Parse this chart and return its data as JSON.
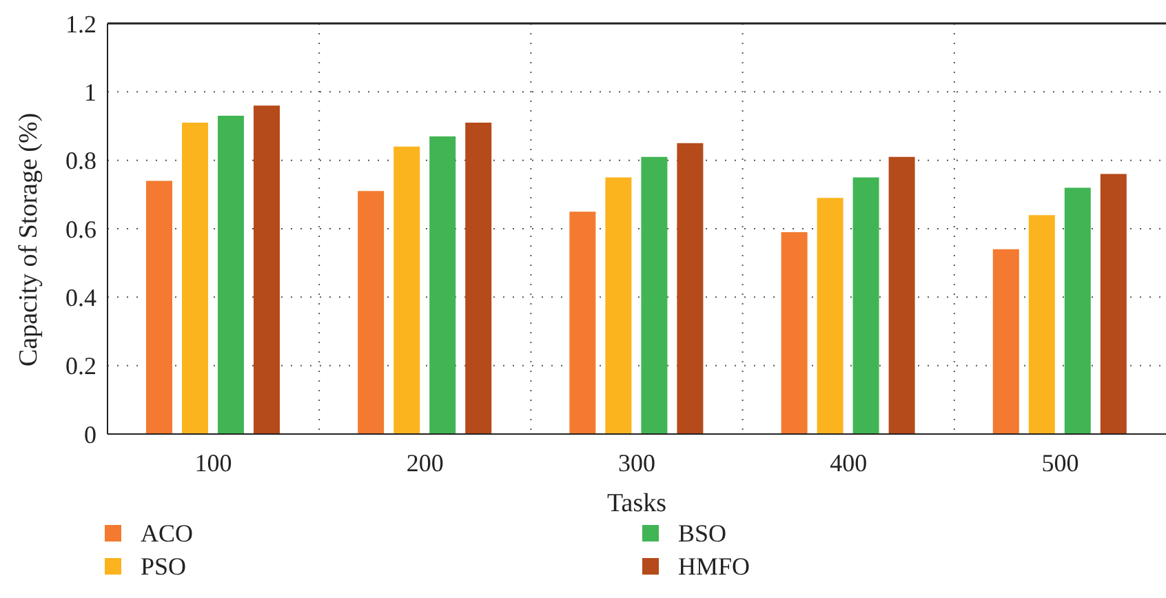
{
  "chart_data": {
    "type": "bar",
    "xlabel": "Tasks",
    "ylabel": "Capacity of Storage (%)",
    "categories": [
      "100",
      "200",
      "300",
      "400",
      "500"
    ],
    "series": [
      {
        "name": "ACO",
        "color": "#f37a30",
        "values": [
          0.74,
          0.71,
          0.65,
          0.59,
          0.54
        ]
      },
      {
        "name": "PSO",
        "color": "#fbb41e",
        "values": [
          0.91,
          0.84,
          0.75,
          0.69,
          0.64
        ]
      },
      {
        "name": "BSO",
        "color": "#41b553",
        "values": [
          0.93,
          0.87,
          0.81,
          0.75,
          0.72
        ]
      },
      {
        "name": "HMFO",
        "color": "#b54a1a",
        "values": [
          0.96,
          0.91,
          0.85,
          0.81,
          0.76
        ]
      }
    ],
    "ylim": [
      0,
      1.2
    ],
    "yticks": [
      0,
      0.2,
      0.4,
      0.6,
      0.8,
      1,
      1.2
    ],
    "grid": true,
    "legend": "bottom"
  }
}
